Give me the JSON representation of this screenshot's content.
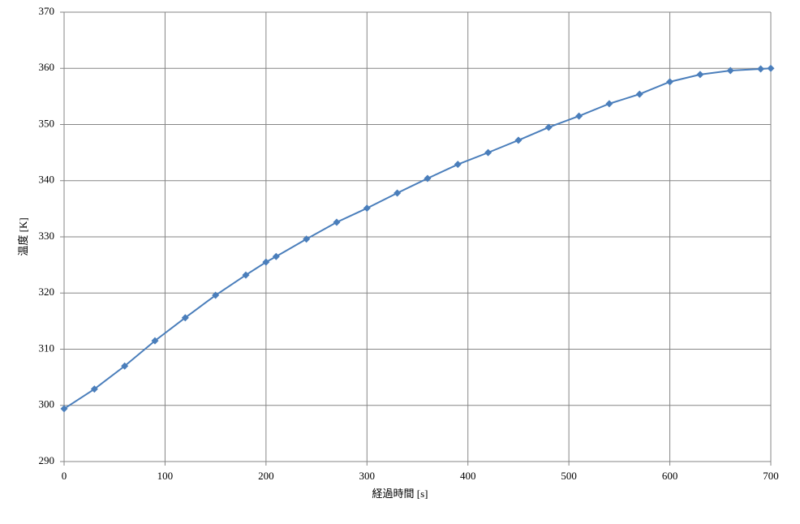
{
  "chart_data": {
    "type": "line",
    "x_label": "経過時間 [s]",
    "y_label": "温度 [K]",
    "x": [
      0,
      30,
      60,
      90,
      120,
      150,
      180,
      200,
      210,
      240,
      270,
      300,
      330,
      360,
      390,
      420,
      450,
      480,
      510,
      540,
      570,
      600,
      630,
      660,
      690,
      700
    ],
    "values": [
      299.4,
      302.9,
      307.0,
      311.5,
      315.6,
      319.6,
      323.2,
      325.5,
      326.5,
      329.6,
      332.6,
      335.1,
      337.8,
      340.4,
      342.9,
      345.0,
      347.2,
      349.5,
      351.5,
      353.7,
      355.4,
      357.6,
      358.9,
      359.6,
      359.9,
      360.0
    ],
    "color": "#4a7ebb",
    "xlim": [
      0,
      700
    ],
    "xticks": [
      0,
      100,
      200,
      300,
      400,
      500,
      600,
      700
    ],
    "ylim": [
      290,
      370
    ],
    "yticks": [
      290,
      300,
      310,
      320,
      330,
      340,
      350,
      360,
      370
    ],
    "grid": true
  }
}
